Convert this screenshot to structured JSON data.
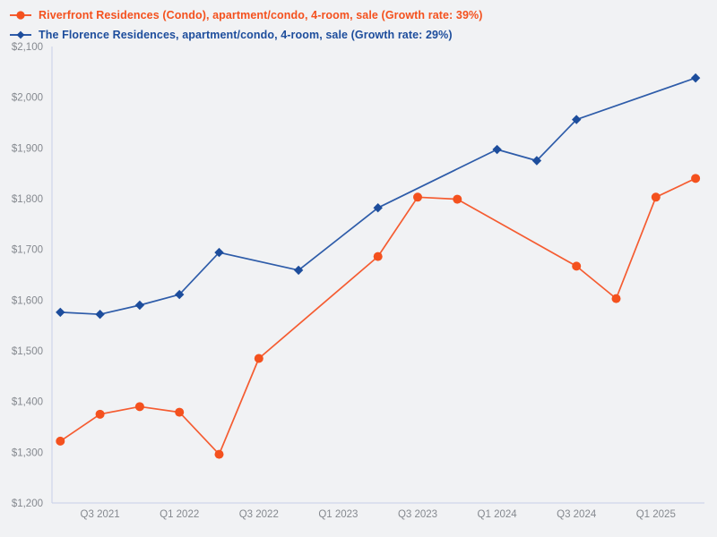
{
  "colors": {
    "background": "#f1f2f4",
    "axis_line": "#c6cfe9",
    "tick_text": "#85898f",
    "series_orange": "#f4511e",
    "series_blue": "#1d4d9c"
  },
  "chart_data": {
    "type": "line",
    "title": "",
    "legend_position": "top-left",
    "grid": false,
    "ylim": [
      1200,
      2100
    ],
    "y_tick_step": 100,
    "y_tick_labels": [
      "$1,200",
      "$1,300",
      "$1,400",
      "$1,500",
      "$1,600",
      "$1,700",
      "$1,800",
      "$1,900",
      "$2,000",
      "$2,100"
    ],
    "x_slots": [
      "Q2 2021",
      "Q3 2021",
      "Q4 2021",
      "Q1 2022",
      "Q2 2022",
      "Q3 2022",
      "Q4 2022",
      "Q1 2023",
      "Q2 2023",
      "Q3 2023",
      "Q4 2023",
      "Q1 2024",
      "Q2 2024",
      "Q3 2024",
      "Q4 2024",
      "Q1 2025",
      "Q2 2025"
    ],
    "x_ticks": [
      {
        "label": "Q3 2021",
        "slot": 1
      },
      {
        "label": "Q1 2022",
        "slot": 3
      },
      {
        "label": "Q3 2022",
        "slot": 5
      },
      {
        "label": "Q1 2023",
        "slot": 7
      },
      {
        "label": "Q3 2023",
        "slot": 9
      },
      {
        "label": "Q1 2024",
        "slot": 11
      },
      {
        "label": "Q3 2024",
        "slot": 13
      },
      {
        "label": "Q1 2025",
        "slot": 15
      }
    ],
    "series": [
      {
        "name": "Riverfront Residences (Condo), apartment/condo, 4-room, sale (Growth rate: 39%)",
        "growth_rate": "39%",
        "color": "#f4511e",
        "line_color": "#f55c31",
        "marker": "circle",
        "points": [
          {
            "quarter": "Q2 2021",
            "value": 1322
          },
          {
            "quarter": "Q3 2021",
            "value": 1375
          },
          {
            "quarter": "Q4 2021",
            "value": 1390
          },
          {
            "quarter": "Q1 2022",
            "value": 1379
          },
          {
            "quarter": "Q2 2022",
            "value": 1296
          },
          {
            "quarter": "Q3 2022",
            "value": 1485
          },
          {
            "quarter": "Q2 2023",
            "value": 1686
          },
          {
            "quarter": "Q3 2023",
            "value": 1803
          },
          {
            "quarter": "Q4 2023",
            "value": 1799
          },
          {
            "quarter": "Q3 2024",
            "value": 1667
          },
          {
            "quarter": "Q4 2024",
            "value": 1603
          },
          {
            "quarter": "Q1 2025",
            "value": 1803
          },
          {
            "quarter": "Q2 2025",
            "value": 1840
          }
        ]
      },
      {
        "name": "The Florence Residences, apartment/condo, 4-room, sale (Growth rate: 29%)",
        "growth_rate": "29%",
        "color": "#1d4d9c",
        "line_color": "#2e5ca9",
        "marker": "diamond",
        "points": [
          {
            "quarter": "Q2 2021",
            "value": 1576
          },
          {
            "quarter": "Q3 2021",
            "value": 1572
          },
          {
            "quarter": "Q4 2021",
            "value": 1590
          },
          {
            "quarter": "Q1 2022",
            "value": 1611
          },
          {
            "quarter": "Q2 2022",
            "value": 1694
          },
          {
            "quarter": "Q4 2022",
            "value": 1659
          },
          {
            "quarter": "Q2 2023",
            "value": 1782
          },
          {
            "quarter": "Q1 2024",
            "value": 1897
          },
          {
            "quarter": "Q2 2024",
            "value": 1875
          },
          {
            "quarter": "Q3 2024",
            "value": 1956
          },
          {
            "quarter": "Q2 2025",
            "value": 2038
          }
        ]
      }
    ]
  }
}
